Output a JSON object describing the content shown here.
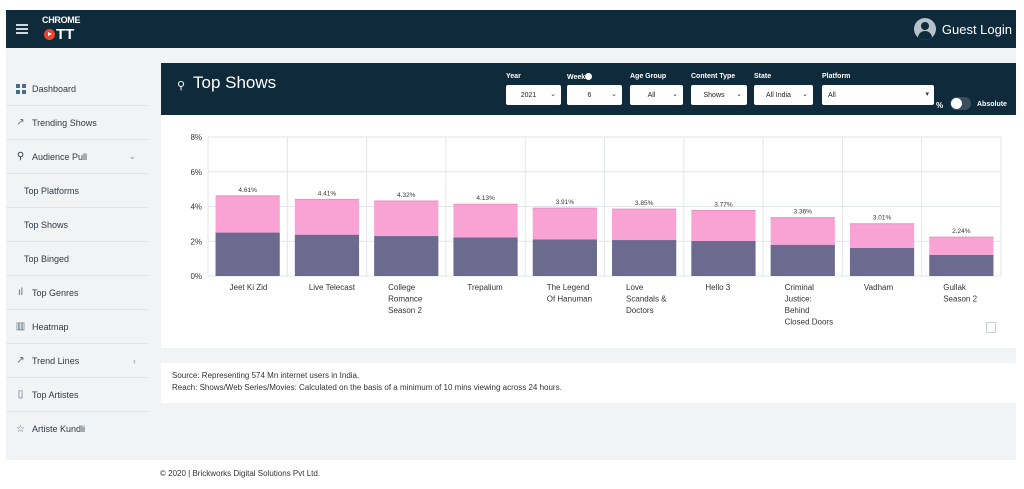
{
  "app": {
    "logo_top": "CHROME",
    "logo_bottom": "TT"
  },
  "user": {
    "label": "Guest Login"
  },
  "sidebar": {
    "items": [
      {
        "label": "Dashboard",
        "icon": "grid-icon"
      },
      {
        "label": "Trending Shows",
        "icon": "trending-icon"
      },
      {
        "label": "Audience Pull",
        "icon": "audience-icon",
        "caret": "⌄"
      },
      {
        "label": "Top Platforms",
        "sub": true
      },
      {
        "label": "Top Shows",
        "sub": true
      },
      {
        "label": "Top Binged",
        "sub": true
      },
      {
        "label": "Top Genres",
        "icon": "bar-chart-icon"
      },
      {
        "label": "Heatmap",
        "icon": "heatmap-icon"
      },
      {
        "label": "Trend Lines",
        "icon": "trend-lines-icon",
        "caret": "‹"
      },
      {
        "label": "Top Artistes",
        "icon": "film-icon"
      },
      {
        "label": "Artiste Kundli",
        "icon": "star-icon"
      }
    ]
  },
  "header": {
    "title": "Top Shows",
    "filters": {
      "year": {
        "label": "Year",
        "value": "2021"
      },
      "week": {
        "label": "Week",
        "value": "6"
      },
      "age_group": {
        "label": "Age Group",
        "value": "All"
      },
      "content_type": {
        "label": "Content Type",
        "value": "Shows"
      },
      "state": {
        "label": "State",
        "value": "All India"
      },
      "platform": {
        "label": "Platform",
        "value": "All"
      }
    },
    "percent_label": "%",
    "absolute_label": "Absolute"
  },
  "chart_data": {
    "type": "bar",
    "stacked": true,
    "categories": [
      "Jeet Ki Zid",
      "Live Telecast",
      "College Romance Season 2",
      "Trepalium",
      "The Legend Of Hanuman",
      "Love Scandals & Doctors",
      "Hello 3",
      "Criminal Justice: Behind Closed Doors",
      "Vadham",
      "Gullak Season 2"
    ],
    "category_lines": [
      [
        "Jeet Ki Zid"
      ],
      [
        "Live Telecast"
      ],
      [
        "College",
        "Romance",
        "Season 2"
      ],
      [
        "Trepalium"
      ],
      [
        "The Legend",
        "Of Hanuman"
      ],
      [
        "Love",
        "Scandals &",
        "Doctors"
      ],
      [
        "Hello 3"
      ],
      [
        "Criminal",
        "Justice:",
        "Behind",
        "Closed Doors"
      ],
      [
        "Vadham"
      ],
      [
        "Gullak",
        "Season 2"
      ]
    ],
    "totals": [
      4.61,
      4.41,
      4.32,
      4.13,
      3.91,
      3.85,
      3.77,
      3.36,
      3.01,
      2.24
    ],
    "labels": [
      "4.61%",
      "4.41%",
      "4.32%",
      "4.13%",
      "3.91%",
      "3.85%",
      "3.77%",
      "3.36%",
      "3.01%",
      "2.24%"
    ],
    "lower_values": [
      2.5,
      2.38,
      2.3,
      2.22,
      2.1,
      2.07,
      2.02,
      1.8,
      1.62,
      1.22
    ],
    "colors": {
      "lower": "#6c6a8e",
      "upper": "#f9a2d4"
    },
    "ylim": [
      0,
      8
    ],
    "yticks": [
      "0%",
      "2%",
      "4%",
      "6%",
      "8%"
    ],
    "grid": true
  },
  "source": {
    "line1": "Source: Representing 574 Mn internet users in India.",
    "line2": "Reach: Shows/Web Series/Movies: Calculated on the basis of a minimum of 10 mins viewing across 24 hours."
  },
  "footer": {
    "text": "© 2020 | Brickworks Digital Solutions Pvt Ltd."
  }
}
